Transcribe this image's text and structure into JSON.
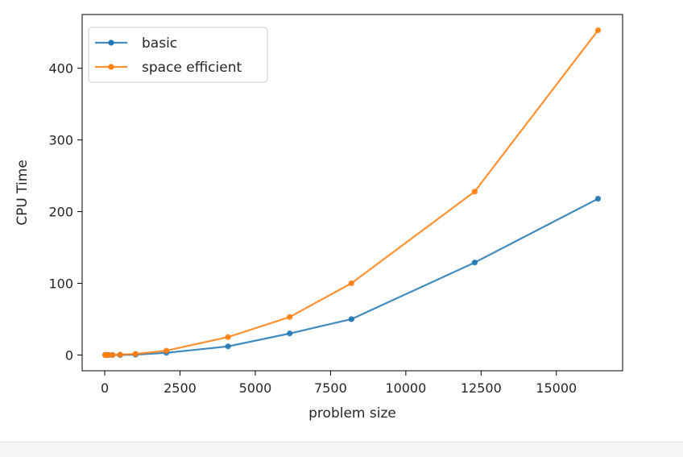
{
  "chart_data": {
    "type": "line",
    "title": "",
    "xlabel": "problem size",
    "ylabel": "CPU Time",
    "xlim": [
      -750,
      17200
    ],
    "ylim": [
      -22,
      475
    ],
    "xticks": [
      0,
      2500,
      5000,
      7500,
      10000,
      12500,
      15000
    ],
    "xtick_labels": [
      "0",
      "2500",
      "5000",
      "7500",
      "10000",
      "12500",
      "15000"
    ],
    "yticks": [
      0,
      100,
      200,
      300,
      400
    ],
    "ytick_labels": [
      "0",
      "100",
      "200",
      "300",
      "400"
    ],
    "grid": false,
    "legend_position": "top-left",
    "series": [
      {
        "name": "basic",
        "color": "#1f77b4",
        "x": [
          16,
          32,
          64,
          128,
          256,
          512,
          1024,
          2048,
          4096,
          6144,
          8192,
          12288,
          16384
        ],
        "y": [
          0,
          0,
          0,
          0,
          0,
          0,
          0.5,
          3,
          12,
          30,
          50,
          129,
          218
        ]
      },
      {
        "name": "space efficient",
        "color": "#ff7f0e",
        "x": [
          16,
          32,
          64,
          128,
          256,
          512,
          1024,
          2048,
          4096,
          6144,
          8192,
          12288,
          16384
        ],
        "y": [
          0,
          0,
          0,
          0,
          0,
          0.5,
          1.5,
          6,
          25,
          53,
          100,
          228,
          453
        ]
      }
    ]
  }
}
